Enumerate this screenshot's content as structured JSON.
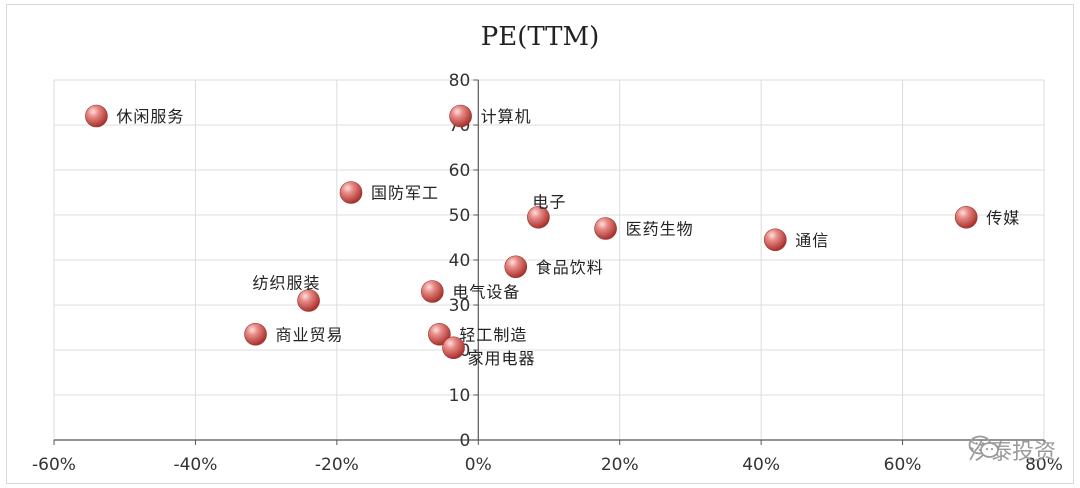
{
  "chart_data": {
    "type": "scatter",
    "title": "PE(TTM)",
    "xlabel": "",
    "ylabel": "",
    "xlim": [
      -0.6,
      0.8
    ],
    "ylim": [
      0,
      80
    ],
    "x_ticks": [
      -0.6,
      -0.4,
      -0.2,
      0,
      0.2,
      0.4,
      0.6,
      0.8
    ],
    "x_tick_labels": [
      "-60%",
      "-40%",
      "-20%",
      "0%",
      "20%",
      "40%",
      "60%",
      "80%"
    ],
    "y_ticks": [
      0,
      10,
      20,
      30,
      40,
      50,
      60,
      70,
      80
    ],
    "y_tick_labels": [
      "0",
      "10",
      "20",
      "30",
      "40",
      "50",
      "60",
      "70",
      "80"
    ],
    "grid": true,
    "marker_color": "#d9534f",
    "points": [
      {
        "label": "休闲服务",
        "x": -0.54,
        "y": 72,
        "label_pos": "right"
      },
      {
        "label": "计算机",
        "x": -0.025,
        "y": 72,
        "label_pos": "right"
      },
      {
        "label": "国防军工",
        "x": -0.18,
        "y": 55,
        "label_pos": "right"
      },
      {
        "label": "电子",
        "x": 0.085,
        "y": 49.5,
        "label_pos": "upper-right"
      },
      {
        "label": "医药生物",
        "x": 0.18,
        "y": 47,
        "label_pos": "right"
      },
      {
        "label": "通信",
        "x": 0.42,
        "y": 44.5,
        "label_pos": "right"
      },
      {
        "label": "传媒",
        "x": 0.69,
        "y": 49.5,
        "label_pos": "right"
      },
      {
        "label": "食品饮料",
        "x": 0.053,
        "y": 38.5,
        "label_pos": "right"
      },
      {
        "label": "纺织服装",
        "x": -0.24,
        "y": 31,
        "label_pos": "upper-left"
      },
      {
        "label": "电气设备",
        "x": -0.065,
        "y": 33,
        "label_pos": "right"
      },
      {
        "label": "商业贸易",
        "x": -0.315,
        "y": 23.5,
        "label_pos": "right"
      },
      {
        "label": "轻工制造",
        "x": -0.055,
        "y": 23.5,
        "label_pos": "right"
      },
      {
        "label": "家用电器",
        "x": -0.035,
        "y": 20.5,
        "label_pos": "lower-right"
      }
    ]
  },
  "watermark": {
    "text": "汐泰投资",
    "icon": "wechat-icon"
  }
}
